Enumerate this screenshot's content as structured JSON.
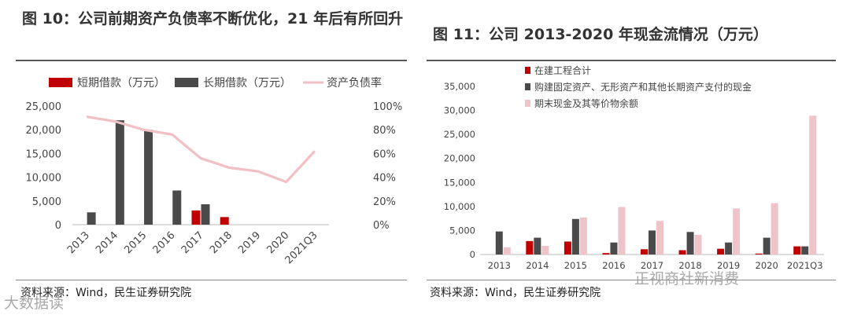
{
  "figures": [
    {
      "title": "图 10：公司前期资产负债率不断优化，21 年后有所回升",
      "source": "资料来源：Wind，民生证券研究院",
      "chart_data": {
        "type": "bar",
        "categories": [
          "2013",
          "2014",
          "2015",
          "2016",
          "2017",
          "2018",
          "2019",
          "2020",
          "2021Q3"
        ],
        "series": [
          {
            "name": "短期借款（万元）",
            "kind": "bar",
            "color": "#c00000",
            "values": [
              0,
              0,
              0,
              0,
              3000,
              1600,
              0,
              0,
              0
            ]
          },
          {
            "name": "长期借款（万元）",
            "kind": "bar",
            "color": "#4a4a4a",
            "values": [
              2600,
              22000,
              20000,
              7200,
              4300,
              0,
              0,
              0,
              0
            ]
          },
          {
            "name": "资产负债率",
            "kind": "line",
            "axis": "right",
            "color": "#f0c0c4",
            "values": [
              91,
              87,
              80,
              76,
              56,
              48,
              45,
              36,
              62
            ]
          }
        ],
        "y_ticks": [
          "0",
          "5,000",
          "10,000",
          "15,000",
          "20,000",
          "25,000"
        ],
        "ylim": [
          0,
          25000
        ],
        "y2_ticks": [
          "0%",
          "20%",
          "40%",
          "60%",
          "80%",
          "100%"
        ],
        "y2lim": [
          0,
          100
        ],
        "legend": "top",
        "grid": false
      }
    },
    {
      "title": "图 11：公司 2013-2020 年现金流情况（万元）",
      "source": "资料来源：Wind，民生证券研究院",
      "chart_data": {
        "type": "bar",
        "categories": [
          "2013",
          "2014",
          "2015",
          "2016",
          "2017",
          "2018",
          "2019",
          "2020",
          "2021Q3"
        ],
        "series": [
          {
            "name": "在建工程合计",
            "color": "#c00000",
            "values": [
              0,
              2800,
              2700,
              300,
              1100,
              900,
              1200,
              200,
              1700
            ]
          },
          {
            "name": "购建固定资产、无形资产和其他长期资产支付的现金",
            "color": "#4a4a4a",
            "values": [
              4800,
              3500,
              7400,
              2500,
              5000,
              4700,
              2500,
              3500,
              1700
            ]
          },
          {
            "name": "期末现金及其等价物余额",
            "color": "#eec4c8",
            "values": [
              1500,
              1800,
              7700,
              9900,
              7000,
              4100,
              9600,
              10700,
              28900
            ]
          }
        ],
        "y_ticks": [
          "0",
          "5,000",
          "10,000",
          "15,000",
          "20,000",
          "25,000",
          "30,000",
          "35,000"
        ],
        "ylim": [
          0,
          35000
        ],
        "legend": "top-left",
        "grid": false
      }
    }
  ],
  "watermarks": {
    "left": "大数据读",
    "right": "正视商社新消费"
  }
}
